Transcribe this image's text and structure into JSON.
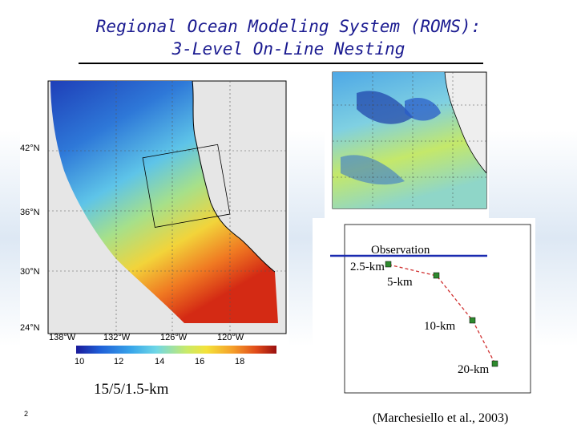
{
  "slide": {
    "title_line1": "Regional Ocean Modeling System (ROMS):",
    "title_line2": "3-Level On-Line Nesting",
    "number": "2",
    "citation": "(Marchesiello et al., 2003)"
  },
  "map": {
    "caption": "15/5/1.5-km",
    "lat_labels": [
      "42°N",
      "36°N",
      "30°N",
      "24°N"
    ],
    "lon_labels": [
      "138°W",
      "132°W",
      "126°W",
      "120°W"
    ],
    "colorbar_ticks": [
      "10",
      "12",
      "14",
      "16",
      "18"
    ]
  },
  "chart": {
    "labels": {
      "observation": "Observation",
      "res_2_5": "2.5-km",
      "res_5": "5-km",
      "res_10": "10-km",
      "res_20": "20-km"
    }
  }
}
